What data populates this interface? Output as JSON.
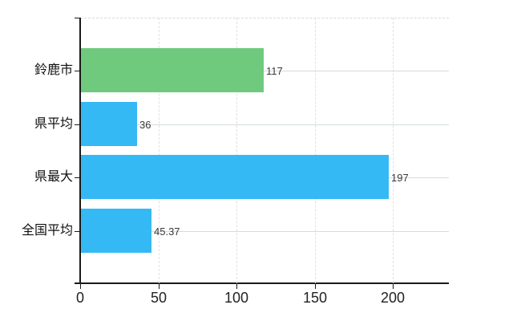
{
  "chart_data": {
    "type": "bar",
    "orientation": "horizontal",
    "title": "",
    "xlabel": "",
    "ylabel": "",
    "categories": [
      "鈴鹿市",
      "県平均",
      "県最大",
      "全国平均"
    ],
    "values": [
      117,
      36,
      197,
      45.37
    ],
    "value_labels": [
      "117",
      "36",
      "197",
      "45.37"
    ],
    "bar_colors": [
      "#6fca7d",
      "#35b9f5",
      "#35b9f5",
      "#35b9f5"
    ],
    "x_ticks": [
      0,
      50,
      100,
      150,
      200
    ],
    "xlim": [
      0,
      236
    ],
    "grid": true,
    "legend": false,
    "colors": {
      "green_bar": "#6fca7d",
      "blue_bar": "#35b9f5",
      "axis": "#1a1a1a",
      "h_gridline": "#d5ddd5",
      "v_gridline": "#e0e0e0",
      "top_border_dashed": "#d8d8d8",
      "background": "#ffffff"
    }
  }
}
